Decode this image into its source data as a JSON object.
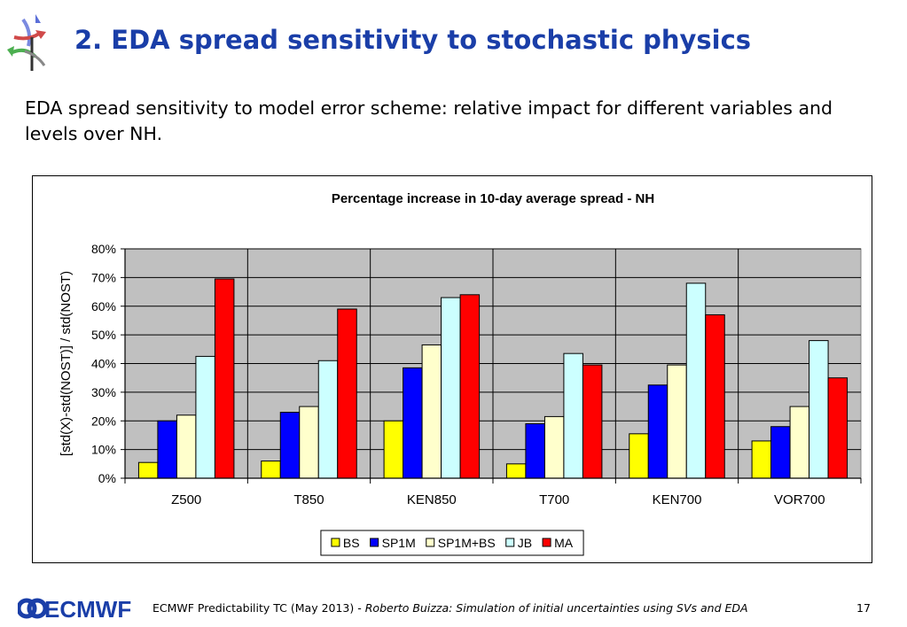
{
  "header": {
    "title": "2. EDA spread sensitivity to stochastic physics",
    "subtitle": "EDA spread sensitivity to model error scheme: relative impact for different variables and levels over NH."
  },
  "chart_data": {
    "type": "bar",
    "title": "Percentage increase in 10-day average spread - NH",
    "ylabel": "[std(X)-std(NOST)] / std(NOST)",
    "xlabel": "",
    "ylim": [
      0,
      80
    ],
    "yticks": [
      "0%",
      "10%",
      "20%",
      "30%",
      "40%",
      "50%",
      "60%",
      "70%",
      "80%"
    ],
    "categories": [
      "Z500",
      "T850",
      "KEN850",
      "T700",
      "KEN700",
      "VOR700"
    ],
    "series": [
      {
        "name": "BS",
        "color": "#ffff00",
        "values": [
          5.5,
          6,
          20,
          5,
          15.5,
          13
        ]
      },
      {
        "name": "SP1M",
        "color": "#0000ff",
        "values": [
          20,
          23,
          38.5,
          19,
          32.5,
          18
        ]
      },
      {
        "name": "SP1M+BS",
        "color": "#ffffcc",
        "values": [
          22,
          25,
          46.5,
          21.5,
          39.5,
          25
        ]
      },
      {
        "name": "JB",
        "color": "#ccffff",
        "values": [
          42.5,
          41,
          63,
          43.5,
          68,
          48
        ]
      },
      {
        "name": "MA",
        "color": "#ff0000",
        "values": [
          69.5,
          59,
          64,
          39.5,
          57,
          35
        ]
      }
    ],
    "grid": true,
    "plot_background": "#c0c0c0",
    "legend_position": "bottom"
  },
  "footer": {
    "logo_text": "ECMWF",
    "event": "ECMWF Predictability TC (May 2013) -",
    "talk": "Roberto Buizza: Simulation of initial uncertainties using SVs and EDA",
    "page": "17"
  },
  "colors": {
    "title": "#1a3ea8",
    "logo": "#1a3ea8"
  }
}
